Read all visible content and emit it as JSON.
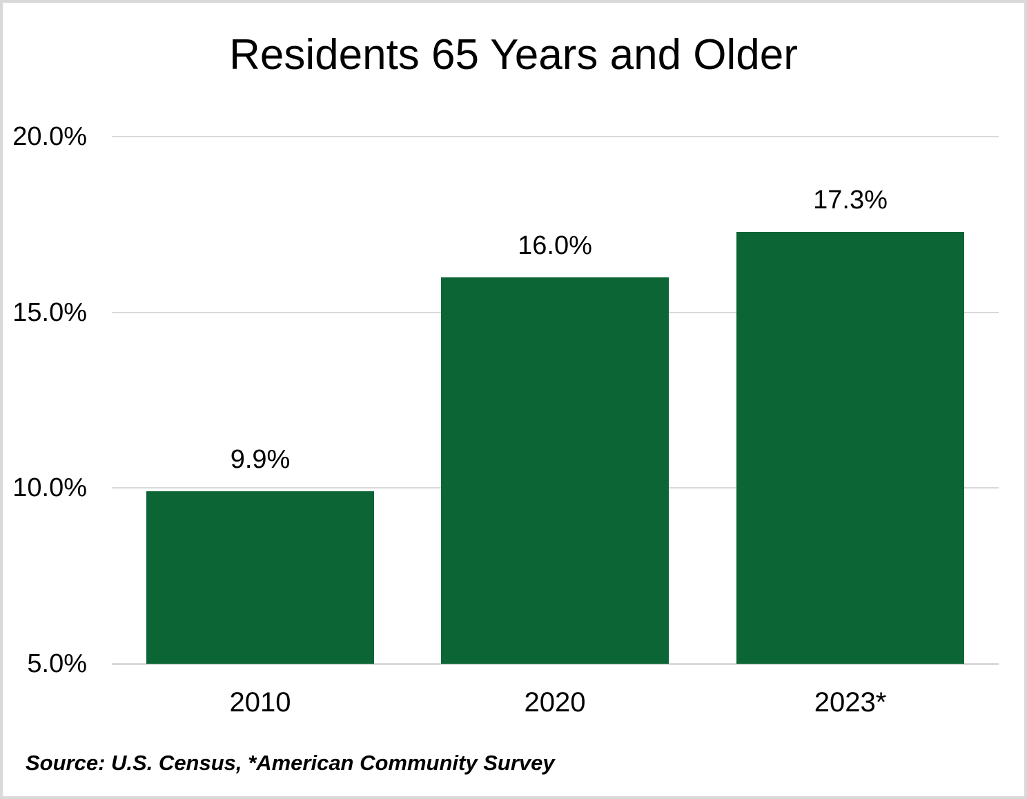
{
  "chart_data": {
    "type": "bar",
    "title": "Residents 65 Years and Older",
    "categories": [
      "2010",
      "2020",
      "2023*"
    ],
    "values": [
      9.9,
      16.0,
      17.3
    ],
    "value_labels": [
      "9.9%",
      "16.0%",
      "17.3%"
    ],
    "y_ticks": [
      {
        "value": 20,
        "label": "20.0%"
      },
      {
        "value": 15,
        "label": "15.0%"
      },
      {
        "value": 10,
        "label": "10.0%"
      },
      {
        "value": 5,
        "label": "5.0%"
      }
    ],
    "ylim": [
      5,
      20
    ],
    "grid": true,
    "legend": "none",
    "bar_color": "#0c6535",
    "grid_color": "#d9d9d9",
    "text_color": "#000000",
    "source_note": "Source: U.S. Census, *American Community Survey"
  }
}
